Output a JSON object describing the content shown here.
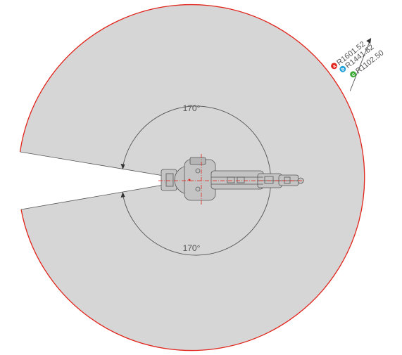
{
  "workspace": {
    "colors": {
      "workspace_fill": "#d6d6d6",
      "outer_boundary": "#e2231a",
      "robot_line": "#555555",
      "robot_fill": "#c4c4c4",
      "centerline": "#e2231a",
      "arc_line": "#555555"
    }
  },
  "angles": {
    "top_label": "170°",
    "bottom_label": "170°"
  },
  "radii": [
    {
      "badge": "a",
      "label": "R1601.52",
      "color": "#e2231a"
    },
    {
      "badge": "b",
      "label": "R1441.82",
      "color": "#1ea0dc"
    },
    {
      "badge": "c",
      "label": "R1102.50",
      "color": "#3aaa35"
    }
  ]
}
